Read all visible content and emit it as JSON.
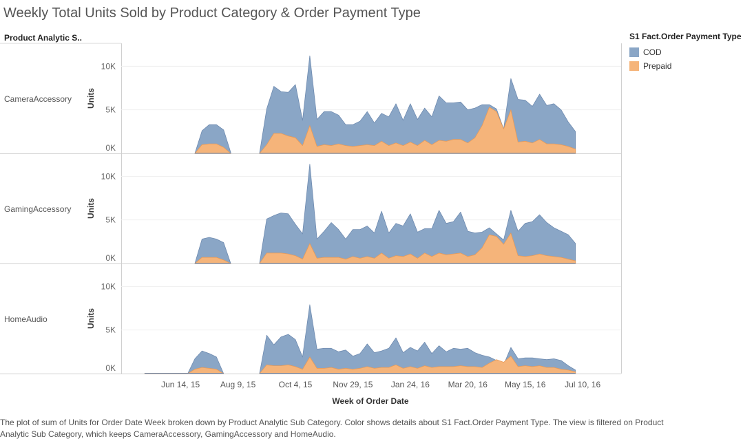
{
  "title": "Weekly Total Units Sold by Product Category & Order Payment Type",
  "row_header": "Product Analytic S..",
  "legend": {
    "title": "S1 Fact.Order Payment Type",
    "items": [
      {
        "label": "COD",
        "color": "#8aa6c6"
      },
      {
        "label": "Prepaid",
        "color": "#f5b47a"
      }
    ]
  },
  "caption": "The plot of sum of Units for Order Date Week broken down by Product Analytic Sub Category.  Color shows details about S1 Fact.Order Payment Type. The view is filtered on Product Analytic Sub Category, which keeps CameraAccessory, GamingAccessory and HomeAudio.",
  "chart_data": {
    "type": "area",
    "stacked": true,
    "xlabel": "Week of Order Date",
    "ylabel": "Units",
    "ylim": [
      0,
      12000
    ],
    "yticks": [
      {
        "v": 0,
        "label": "0K"
      },
      {
        "v": 5000,
        "label": "5K"
      },
      {
        "v": 10000,
        "label": "10K"
      }
    ],
    "x_range": [
      "2015-05-10",
      "2016-07-24"
    ],
    "xticks": [
      {
        "date": "2015-06-14",
        "label": "Jun 14, 15"
      },
      {
        "date": "2015-08-09",
        "label": "Aug 9, 15"
      },
      {
        "date": "2015-10-04",
        "label": "Oct 4, 15"
      },
      {
        "date": "2015-11-29",
        "label": "Nov 29, 15"
      },
      {
        "date": "2016-01-24",
        "label": "Jan 24, 16"
      },
      {
        "date": "2016-03-20",
        "label": "Mar 20, 16"
      },
      {
        "date": "2016-05-15",
        "label": "May 15, 16"
      },
      {
        "date": "2016-07-10",
        "label": "Jul 10, 16"
      }
    ],
    "series_colors": {
      "COD": "#8aa6c6",
      "Prepaid": "#f5b47a"
    },
    "panels": [
      {
        "name": "CameraAccessory",
        "x": [
          "2015-06-28",
          "2015-07-05",
          "2015-07-12",
          "2015-07-19",
          "2015-07-26",
          "2015-08-02",
          "2015-08-30",
          "2015-09-06",
          "2015-09-13",
          "2015-09-20",
          "2015-09-27",
          "2015-10-04",
          "2015-10-11",
          "2015-10-18",
          "2015-10-25",
          "2015-11-01",
          "2015-11-08",
          "2015-11-15",
          "2015-11-22",
          "2015-11-29",
          "2015-12-06",
          "2015-12-13",
          "2015-12-20",
          "2015-12-27",
          "2016-01-03",
          "2016-01-10",
          "2016-01-17",
          "2016-01-24",
          "2016-01-31",
          "2016-02-07",
          "2016-02-14",
          "2016-02-21",
          "2016-02-28",
          "2016-03-06",
          "2016-03-13",
          "2016-03-20",
          "2016-03-27",
          "2016-04-03",
          "2016-04-10",
          "2016-04-17",
          "2016-04-24",
          "2016-05-01",
          "2016-05-08",
          "2016-05-15",
          "2016-05-22",
          "2016-05-29",
          "2016-06-05",
          "2016-06-12",
          "2016-06-19",
          "2016-06-26",
          "2016-07-03"
        ],
        "cod_total": [
          0,
          2600,
          3300,
          3300,
          2700,
          100,
          0,
          5100,
          7700,
          7100,
          7000,
          7900,
          3800,
          11200,
          3900,
          4800,
          4800,
          4400,
          3300,
          3300,
          3700,
          4800,
          3500,
          4600,
          4200,
          5700,
          3800,
          5700,
          3900,
          5200,
          4200,
          6600,
          5800,
          5800,
          5900,
          5000,
          5200,
          5600,
          5600,
          5100,
          2800,
          8600,
          6200,
          6100,
          5400,
          6800,
          5500,
          5700,
          5000,
          3600,
          2500
        ],
        "prepaid": [
          0,
          1000,
          1100,
          1100,
          700,
          0,
          0,
          1000,
          2300,
          2300,
          2000,
          1800,
          900,
          3200,
          800,
          1000,
          900,
          1100,
          900,
          800,
          900,
          1000,
          900,
          1400,
          900,
          1200,
          900,
          1300,
          900,
          1500,
          1000,
          1500,
          1400,
          1600,
          1600,
          1200,
          1800,
          3200,
          5300,
          4800,
          2800,
          5000,
          1300,
          1400,
          1200,
          1600,
          1100,
          1100,
          1000,
          800,
          500
        ]
      },
      {
        "name": "GamingAccessory",
        "x": [
          "2015-06-28",
          "2015-07-05",
          "2015-07-12",
          "2015-07-19",
          "2015-07-26",
          "2015-08-02",
          "2015-08-30",
          "2015-09-06",
          "2015-09-13",
          "2015-09-20",
          "2015-09-27",
          "2015-10-04",
          "2015-10-11",
          "2015-10-18",
          "2015-10-25",
          "2015-11-01",
          "2015-11-08",
          "2015-11-15",
          "2015-11-22",
          "2015-11-29",
          "2015-12-06",
          "2015-12-13",
          "2015-12-20",
          "2015-12-27",
          "2016-01-03",
          "2016-01-10",
          "2016-01-17",
          "2016-01-24",
          "2016-01-31",
          "2016-02-07",
          "2016-02-14",
          "2016-02-21",
          "2016-02-28",
          "2016-03-06",
          "2016-03-13",
          "2016-03-20",
          "2016-03-27",
          "2016-04-03",
          "2016-04-10",
          "2016-04-17",
          "2016-04-24",
          "2016-05-01",
          "2016-05-08",
          "2016-05-15",
          "2016-05-22",
          "2016-05-29",
          "2016-06-05",
          "2016-06-12",
          "2016-06-19",
          "2016-06-26",
          "2016-07-03"
        ],
        "cod_total": [
          0,
          2800,
          3000,
          2800,
          2400,
          0,
          0,
          5100,
          5500,
          5800,
          5700,
          4500,
          3400,
          11400,
          2800,
          3700,
          4700,
          3900,
          2800,
          3900,
          3900,
          4300,
          3500,
          6000,
          3500,
          4600,
          4300,
          5700,
          3600,
          4000,
          4000,
          6100,
          4600,
          4800,
          5900,
          3700,
          3500,
          3600,
          4100,
          3400,
          2700,
          6100,
          3700,
          4600,
          4800,
          5600,
          4700,
          4100,
          3700,
          3300,
          2300
        ],
        "prepaid": [
          0,
          700,
          700,
          700,
          400,
          0,
          0,
          1200,
          1200,
          1200,
          1100,
          900,
          500,
          2300,
          600,
          700,
          700,
          700,
          500,
          800,
          600,
          800,
          600,
          1200,
          600,
          900,
          800,
          1100,
          600,
          1200,
          800,
          1200,
          1000,
          1100,
          1200,
          800,
          1000,
          1800,
          3300,
          3100,
          2200,
          3500,
          900,
          800,
          900,
          1100,
          900,
          800,
          700,
          500,
          300
        ]
      },
      {
        "name": "HomeAudio",
        "x": [
          "2015-05-10",
          "2015-05-17",
          "2015-05-24",
          "2015-05-31",
          "2015-06-07",
          "2015-06-14",
          "2015-06-21",
          "2015-06-28",
          "2015-07-05",
          "2015-07-12",
          "2015-07-19",
          "2015-07-26",
          "2015-08-30",
          "2015-09-06",
          "2015-09-13",
          "2015-09-20",
          "2015-09-27",
          "2015-10-04",
          "2015-10-11",
          "2015-10-18",
          "2015-10-25",
          "2015-11-01",
          "2015-11-08",
          "2015-11-15",
          "2015-11-22",
          "2015-11-29",
          "2015-12-06",
          "2015-12-13",
          "2015-12-20",
          "2015-12-27",
          "2016-01-03",
          "2016-01-10",
          "2016-01-17",
          "2016-01-24",
          "2016-01-31",
          "2016-02-07",
          "2016-02-14",
          "2016-02-21",
          "2016-02-28",
          "2016-03-06",
          "2016-03-13",
          "2016-03-20",
          "2016-03-27",
          "2016-04-03",
          "2016-04-10",
          "2016-04-17",
          "2016-04-24",
          "2016-05-01",
          "2016-05-08",
          "2016-05-15",
          "2016-05-22",
          "2016-05-29",
          "2016-06-05",
          "2016-06-12",
          "2016-06-19",
          "2016-06-26",
          "2016-07-03"
        ],
        "cod_total": [
          0,
          0,
          0,
          0,
          0,
          0,
          0,
          1700,
          2600,
          2300,
          1900,
          0,
          0,
          4400,
          3300,
          4200,
          4500,
          3900,
          1900,
          7900,
          2800,
          2900,
          2900,
          2500,
          2700,
          2000,
          2300,
          3400,
          2400,
          2600,
          2900,
          4100,
          2400,
          3000,
          2600,
          3600,
          2300,
          3200,
          2500,
          2900,
          2800,
          2900,
          2400,
          2100,
          1900,
          1500,
          1000,
          3000,
          1700,
          1800,
          1800,
          1700,
          1600,
          1700,
          1500,
          900,
          400
        ],
        "prepaid": [
          0,
          0,
          0,
          0,
          0,
          0,
          0,
          500,
          700,
          600,
          500,
          0,
          0,
          1000,
          900,
          900,
          1000,
          800,
          500,
          1900,
          600,
          600,
          700,
          500,
          600,
          500,
          600,
          800,
          600,
          700,
          700,
          1000,
          600,
          800,
          600,
          900,
          700,
          800,
          800,
          800,
          900,
          800,
          800,
          700,
          1200,
          1600,
          1300,
          2000,
          800,
          900,
          800,
          900,
          700,
          700,
          500,
          400,
          200
        ]
      }
    ]
  }
}
